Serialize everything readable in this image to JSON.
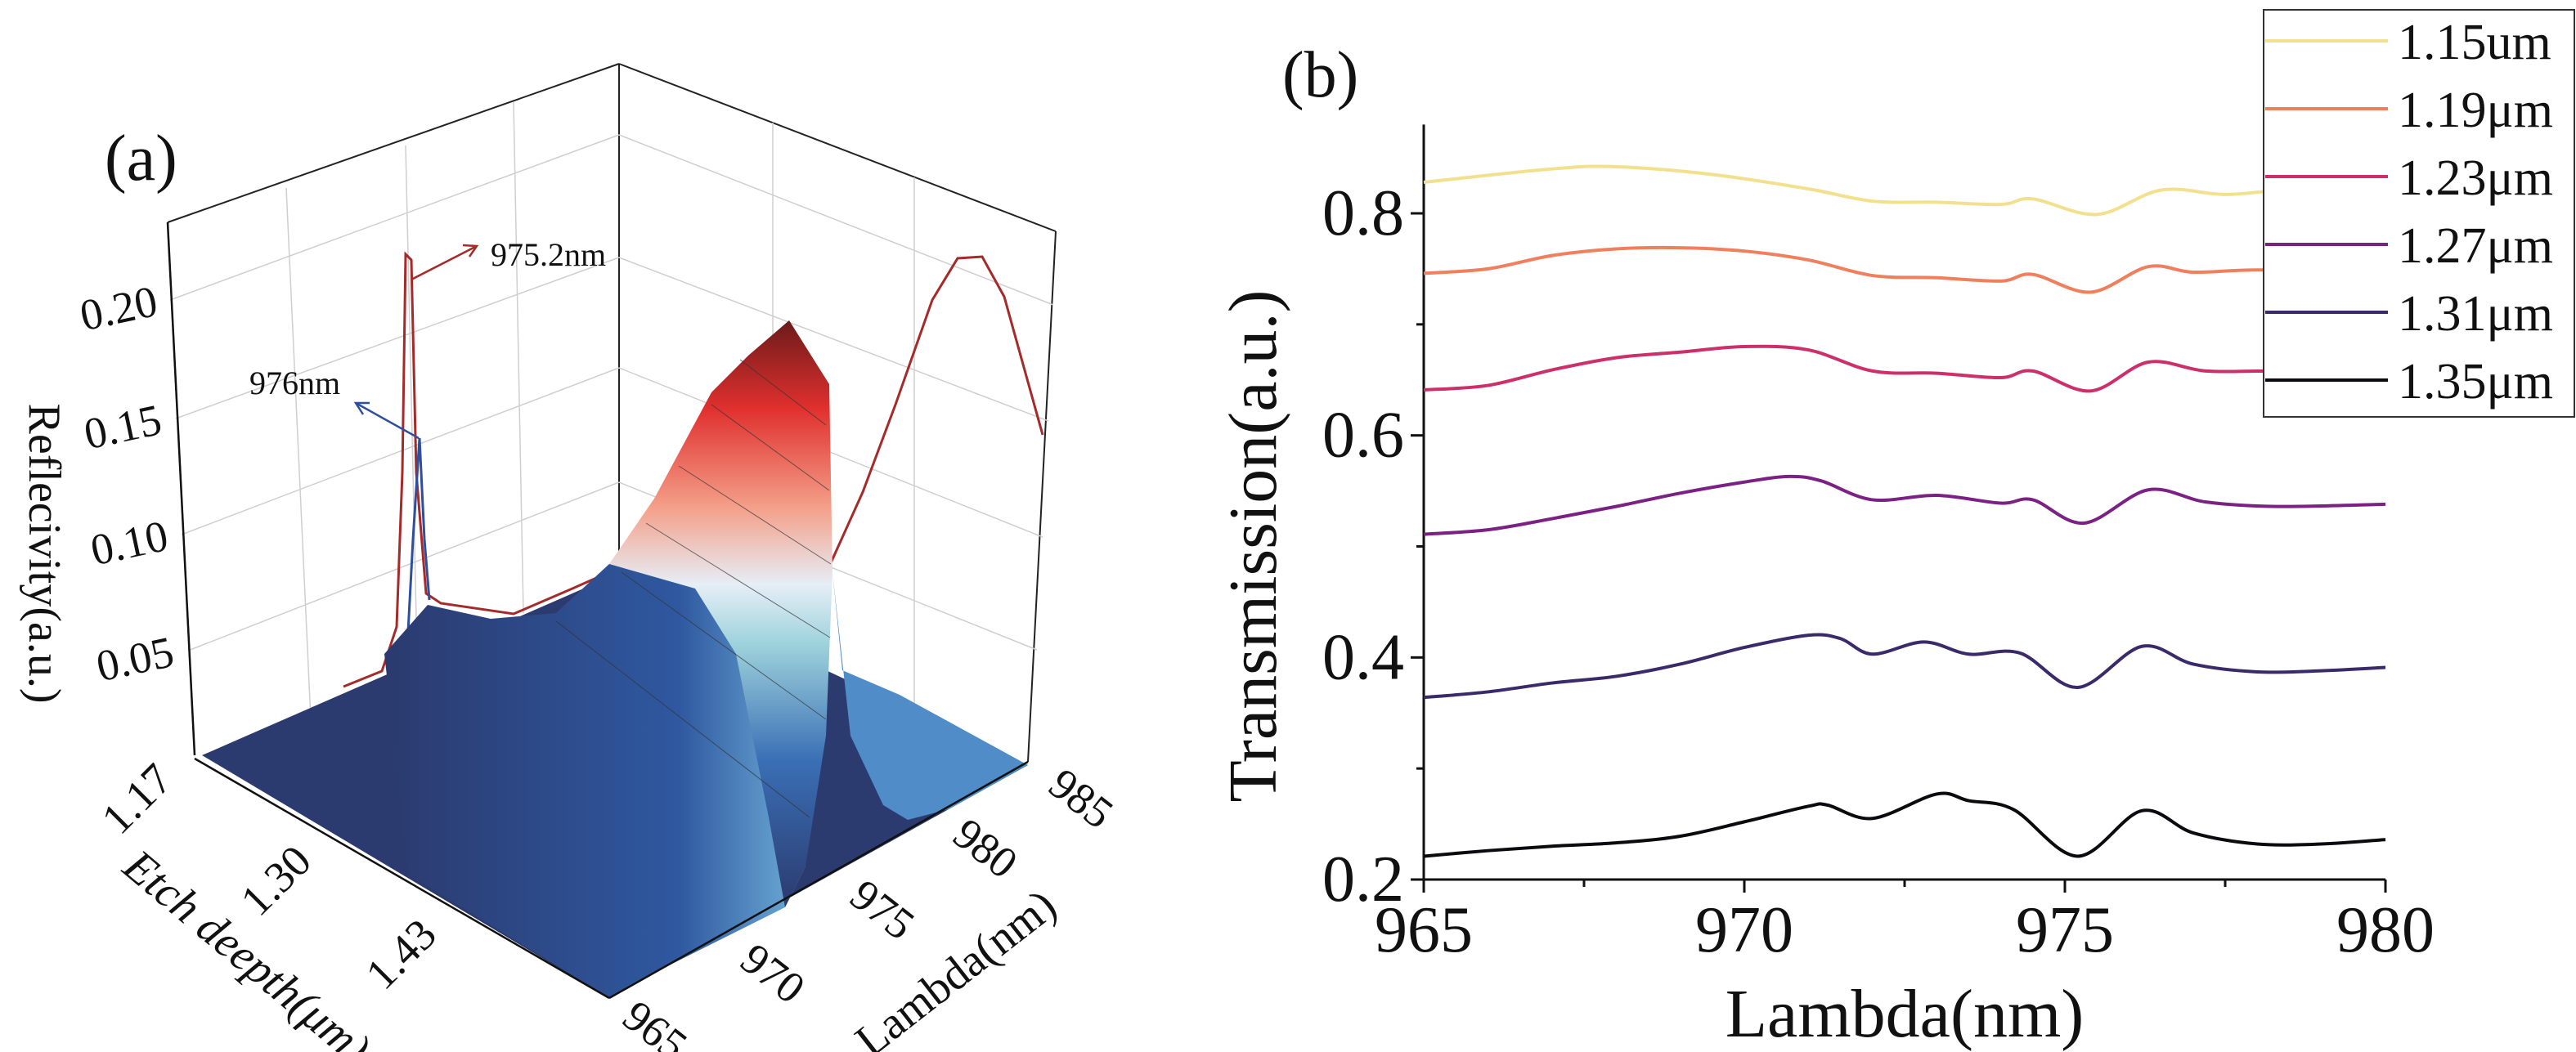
{
  "chart_data": [
    {
      "panel_label": "(a)",
      "type": "heatmap",
      "zlabel": "Reflecivity(a.u.)",
      "xlabel": "Etch deepth(μm)",
      "ylabel": "Lambda(nm)",
      "x_ticks": [
        "1.17",
        "1.30",
        "1.43"
      ],
      "y_ticks": [
        "965",
        "970",
        "975",
        "980",
        "985"
      ],
      "z_ticks": [
        "0.05",
        "0.10",
        "0.15",
        "0.20"
      ],
      "xlim": [
        1.17,
        1.5
      ],
      "ylim": [
        965,
        985
      ],
      "zlim": [
        0,
        0.22
      ],
      "colormap": [
        "#2b3a6e",
        "#3a6fb5",
        "#9fd3dc",
        "#e6eef7",
        "#f4a08a",
        "#e0302e",
        "#6b1a1a"
      ],
      "annotations": [
        {
          "text": "975.2nm",
          "color": "#a52a2a",
          "value": 0.21
        },
        {
          "text": "976nm",
          "color": "#2f4f9c",
          "value": 0.14
        }
      ]
    },
    {
      "panel_label": "(b)",
      "type": "line",
      "xlabel": "Lambda(nm)",
      "ylabel": "Transmission(a.u.)",
      "xlim": [
        965,
        980
      ],
      "ylim": [
        0.2,
        0.88
      ],
      "x_ticks": [
        965,
        970,
        975,
        980
      ],
      "y_ticks": [
        0.2,
        0.4,
        0.6,
        0.8
      ],
      "legend_position": "top-right",
      "grid": false,
      "series": [
        {
          "name": "1.15um",
          "color": "#f3e08e",
          "x": [
            965,
            967,
            968,
            969.5,
            971,
            972,
            973,
            974,
            974.5,
            975.5,
            976.5,
            977.5,
            978.5,
            980
          ],
          "y": [
            0.828,
            0.84,
            0.842,
            0.835,
            0.822,
            0.811,
            0.81,
            0.808,
            0.813,
            0.799,
            0.821,
            0.817,
            0.821,
            0.82
          ]
        },
        {
          "name": "1.19μm",
          "color": "#f07f5e",
          "x": [
            965,
            966,
            967,
            968,
            969,
            970,
            971,
            972,
            973,
            974,
            974.5,
            975.4,
            976.3,
            977,
            978,
            980
          ],
          "y": [
            0.746,
            0.75,
            0.762,
            0.768,
            0.769,
            0.766,
            0.758,
            0.744,
            0.742,
            0.739,
            0.745,
            0.729,
            0.752,
            0.747,
            0.749,
            0.748
          ]
        },
        {
          "name": "1.23μm",
          "color": "#cc2f6a",
          "x": [
            965,
            966,
            967,
            968,
            969,
            970,
            971,
            972,
            973,
            974,
            974.5,
            975.4,
            976.3,
            977.2,
            978.3,
            980
          ],
          "y": [
            0.641,
            0.645,
            0.659,
            0.67,
            0.675,
            0.68,
            0.677,
            0.658,
            0.656,
            0.652,
            0.658,
            0.64,
            0.666,
            0.658,
            0.658,
            0.656
          ]
        },
        {
          "name": "1.27μm",
          "color": "#7b2184",
          "x": [
            965,
            966,
            967,
            968,
            969,
            970,
            970.7,
            971.2,
            972,
            973,
            974,
            974.5,
            975.3,
            976.3,
            977.2,
            978.3,
            980
          ],
          "y": [
            0.511,
            0.515,
            0.525,
            0.536,
            0.548,
            0.558,
            0.563,
            0.559,
            0.542,
            0.546,
            0.539,
            0.542,
            0.521,
            0.551,
            0.54,
            0.536,
            0.538
          ]
        },
        {
          "name": "1.31μm",
          "color": "#3a2a6a",
          "x": [
            965,
            966,
            967,
            968,
            969,
            970,
            971,
            971.5,
            972,
            972.8,
            973.5,
            974.3,
            975.2,
            976.2,
            977,
            978,
            979,
            980
          ],
          "y": [
            0.364,
            0.369,
            0.377,
            0.383,
            0.394,
            0.409,
            0.42,
            0.417,
            0.403,
            0.414,
            0.403,
            0.404,
            0.373,
            0.41,
            0.394,
            0.387,
            0.388,
            0.391
          ]
        },
        {
          "name": "1.35μm",
          "color": "#0b0b0f",
          "x": [
            965,
            966,
            967,
            968,
            969,
            970,
            971,
            971.3,
            972,
            973,
            973.5,
            974.2,
            975.2,
            976.2,
            977,
            978,
            979,
            980
          ],
          "y": [
            0.221,
            0.226,
            0.23,
            0.233,
            0.239,
            0.252,
            0.266,
            0.267,
            0.255,
            0.277,
            0.271,
            0.263,
            0.221,
            0.262,
            0.242,
            0.232,
            0.232,
            0.236
          ]
        }
      ]
    }
  ]
}
